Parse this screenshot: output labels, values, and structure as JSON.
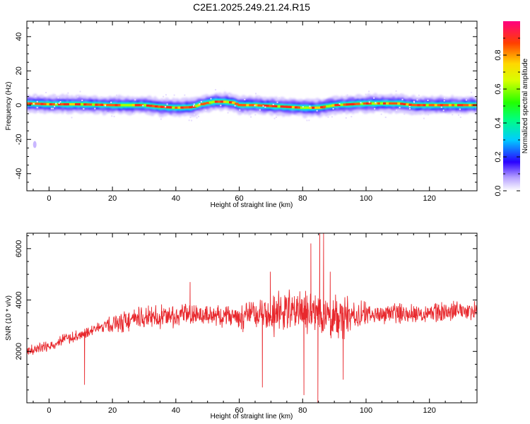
{
  "title": "C2E1.2025.249.21.24.R15",
  "chart_data": [
    {
      "type": "heatmap",
      "name": "spectrogram",
      "xlabel": "Height of straight line (km)",
      "ylabel": "Frequency (Hz)",
      "xlim": [
        -7,
        135
      ],
      "ylim": [
        -50,
        49
      ],
      "xticks": [
        0,
        20,
        40,
        60,
        80,
        100,
        120
      ],
      "yticks": [
        -40,
        -20,
        0,
        20,
        40
      ],
      "xtick_labels": [
        "0",
        "20",
        "40",
        "60",
        "80",
        "100",
        "120"
      ],
      "ytick_labels": [
        "-40",
        "-20",
        "0",
        "20",
        "40"
      ],
      "grid": false,
      "ridge": {
        "x": [
          -7,
          0,
          10,
          20,
          30,
          35,
          40,
          45,
          48,
          52,
          55,
          58,
          60,
          65,
          70,
          75,
          80,
          85,
          90,
          95,
          100,
          105,
          110,
          115,
          120,
          125,
          130,
          135
        ],
        "y": [
          1,
          0.5,
          0.5,
          0,
          0,
          -1,
          -1.5,
          -1.2,
          0.5,
          2,
          2,
          1.5,
          0,
          0,
          -0.5,
          -1,
          -1.5,
          -1.5,
          0,
          0.5,
          1,
          1,
          1,
          0,
          0,
          0,
          0,
          0
        ]
      },
      "colorbar": {
        "label": "Normalized spectral amplitude",
        "range": [
          0,
          1
        ],
        "ticks": [
          0.0,
          0.2,
          0.4,
          0.6,
          0.8
        ],
        "tick_labels": [
          "0.0",
          "0.2",
          "0.4",
          "0.6",
          "0.8"
        ]
      }
    },
    {
      "type": "line",
      "name": "snr",
      "xlabel": "Height of straight line (km)",
      "ylabel": "SNR (10 * v/v)",
      "xlim": [
        -7,
        135
      ],
      "ylim": [
        0,
        6600
      ],
      "xticks": [
        0,
        20,
        40,
        60,
        80,
        100,
        120
      ],
      "yticks": [
        2000,
        4000,
        6000
      ],
      "xtick_labels": [
        "0",
        "20",
        "40",
        "60",
        "80",
        "100",
        "120"
      ],
      "ytick_labels": [
        "2000",
        "4000",
        "6000"
      ],
      "grid": false,
      "line_color": "#e8282d",
      "trend": {
        "x": [
          -7,
          0,
          5,
          10,
          15,
          20,
          30,
          40,
          50,
          60,
          70,
          80,
          85,
          90,
          100,
          110,
          120,
          130,
          135
        ],
        "y": [
          2000,
          2200,
          2500,
          2600,
          2900,
          3100,
          3300,
          3400,
          3400,
          3400,
          3450,
          3600,
          3500,
          3300,
          3400,
          3500,
          3500,
          3600,
          3600
        ]
      },
      "spikes": [
        {
          "x": 11.2,
          "y": 700
        },
        {
          "x": 67.3,
          "y": 600
        },
        {
          "x": 69.8,
          "y": 5100
        },
        {
          "x": 80.4,
          "y": 300
        },
        {
          "x": 82.6,
          "y": 6200
        },
        {
          "x": 84.8,
          "y": 0
        },
        {
          "x": 85.4,
          "y": 6600
        },
        {
          "x": 86.6,
          "y": 6600
        },
        {
          "x": 88.7,
          "y": 5100
        },
        {
          "x": 92.8,
          "y": 900
        },
        {
          "x": 44.5,
          "y": 4700
        }
      ]
    }
  ]
}
